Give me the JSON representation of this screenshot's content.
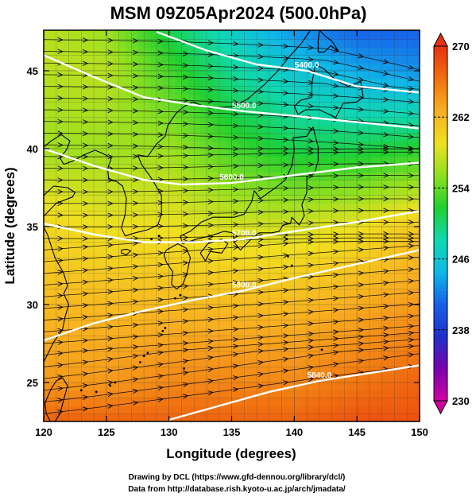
{
  "chart_data": {
    "type": "heatmap",
    "title": "MSM 09Z05Apr2024 (500.0hPa)",
    "xlabel": "Longitude (degrees)",
    "ylabel": "Latitude  (degrees)",
    "xlim": [
      120,
      150
    ],
    "ylim": [
      22.5,
      47.6
    ],
    "x_ticks": [
      120,
      125,
      130,
      135,
      140,
      145,
      150
    ],
    "y_ticks": [
      25,
      30,
      35,
      40,
      45
    ],
    "grid": true,
    "colorbar": {
      "min": 230,
      "max": 270,
      "ticks": [
        230,
        238,
        246,
        254,
        262,
        270
      ],
      "colors": [
        "#d000a0",
        "#7a00b0",
        "#2030c8",
        "#1860e8",
        "#10b8e8",
        "#10d8b0",
        "#20d030",
        "#90e020",
        "#f0e020",
        "#f8b020",
        "#f07010",
        "#e83010"
      ]
    },
    "temperature_field": {
      "lon": [
        120,
        125,
        130,
        135,
        140,
        145,
        150
      ],
      "lat": [
        47.5,
        45,
        40,
        35,
        30,
        25,
        22.6
      ],
      "values": [
        [
          257,
          256,
          251,
          247,
          243,
          241,
          241
        ],
        [
          257,
          257,
          253,
          249,
          246,
          244,
          243
        ],
        [
          256,
          256,
          256,
          253,
          251,
          251,
          252
        ],
        [
          260,
          259,
          259,
          258,
          258,
          259,
          261
        ],
        [
          262,
          262,
          262,
          262,
          262,
          263,
          264
        ],
        [
          264,
          264,
          265,
          265,
          265,
          266,
          267
        ],
        [
          267,
          267,
          267,
          267,
          267,
          268,
          268
        ]
      ]
    },
    "contour_lines": [
      {
        "label": "5400.0",
        "points": [
          [
            129,
            47.5
          ],
          [
            133,
            46.3
          ],
          [
            137,
            45.4
          ],
          [
            141,
            45.0
          ],
          [
            145,
            44.0
          ],
          [
            150,
            43.6
          ]
        ]
      },
      {
        "label": "5500.0",
        "points": [
          [
            120,
            46.0
          ],
          [
            124,
            44.6
          ],
          [
            128,
            43.3
          ],
          [
            132,
            42.8
          ],
          [
            136,
            42.4
          ],
          [
            140,
            42.1
          ],
          [
            145,
            41.7
          ],
          [
            150,
            41.3
          ]
        ]
      },
      {
        "label": "5600.0",
        "points": [
          [
            120,
            40.0
          ],
          [
            124,
            38.9
          ],
          [
            128,
            38.0
          ],
          [
            131,
            37.7
          ],
          [
            135,
            37.8
          ],
          [
            140,
            38.3
          ],
          [
            145,
            38.8
          ],
          [
            150,
            39.1
          ]
        ]
      },
      {
        "label": "5700.0",
        "points": [
          [
            120,
            35.2
          ],
          [
            124,
            34.5
          ],
          [
            128,
            34.0
          ],
          [
            132,
            34.0
          ],
          [
            136,
            34.2
          ],
          [
            140,
            34.7
          ],
          [
            145,
            35.3
          ],
          [
            150,
            36.0
          ]
        ]
      },
      {
        "label": "5800.0",
        "points": [
          [
            120,
            27.7
          ],
          [
            124,
            28.8
          ],
          [
            128,
            29.6
          ],
          [
            132,
            30.3
          ],
          [
            136,
            30.9
          ],
          [
            140,
            31.7
          ],
          [
            145,
            32.6
          ],
          [
            150,
            33.5
          ]
        ]
      },
      {
        "label": "5840.0",
        "points": [
          [
            130,
            22.6
          ],
          [
            134,
            23.5
          ],
          [
            138,
            24.4
          ],
          [
            142,
            25.1
          ],
          [
            146,
            25.6
          ],
          [
            150,
            26.1
          ]
        ]
      }
    ],
    "wind_direction": "mostly eastward, veering south-eastward in the north-east",
    "map_features": [
      "coastlines of China, Korea, Japan and Russia",
      "1-degree longitude/latitude grid"
    ]
  },
  "credits": {
    "line1": "Drawing by DCL (https://www.gfd-dennou.org/library/dcl/)",
    "line2": "Data from http://database.rish.kyoto-u.ac.jp/arch/jmadata/"
  }
}
